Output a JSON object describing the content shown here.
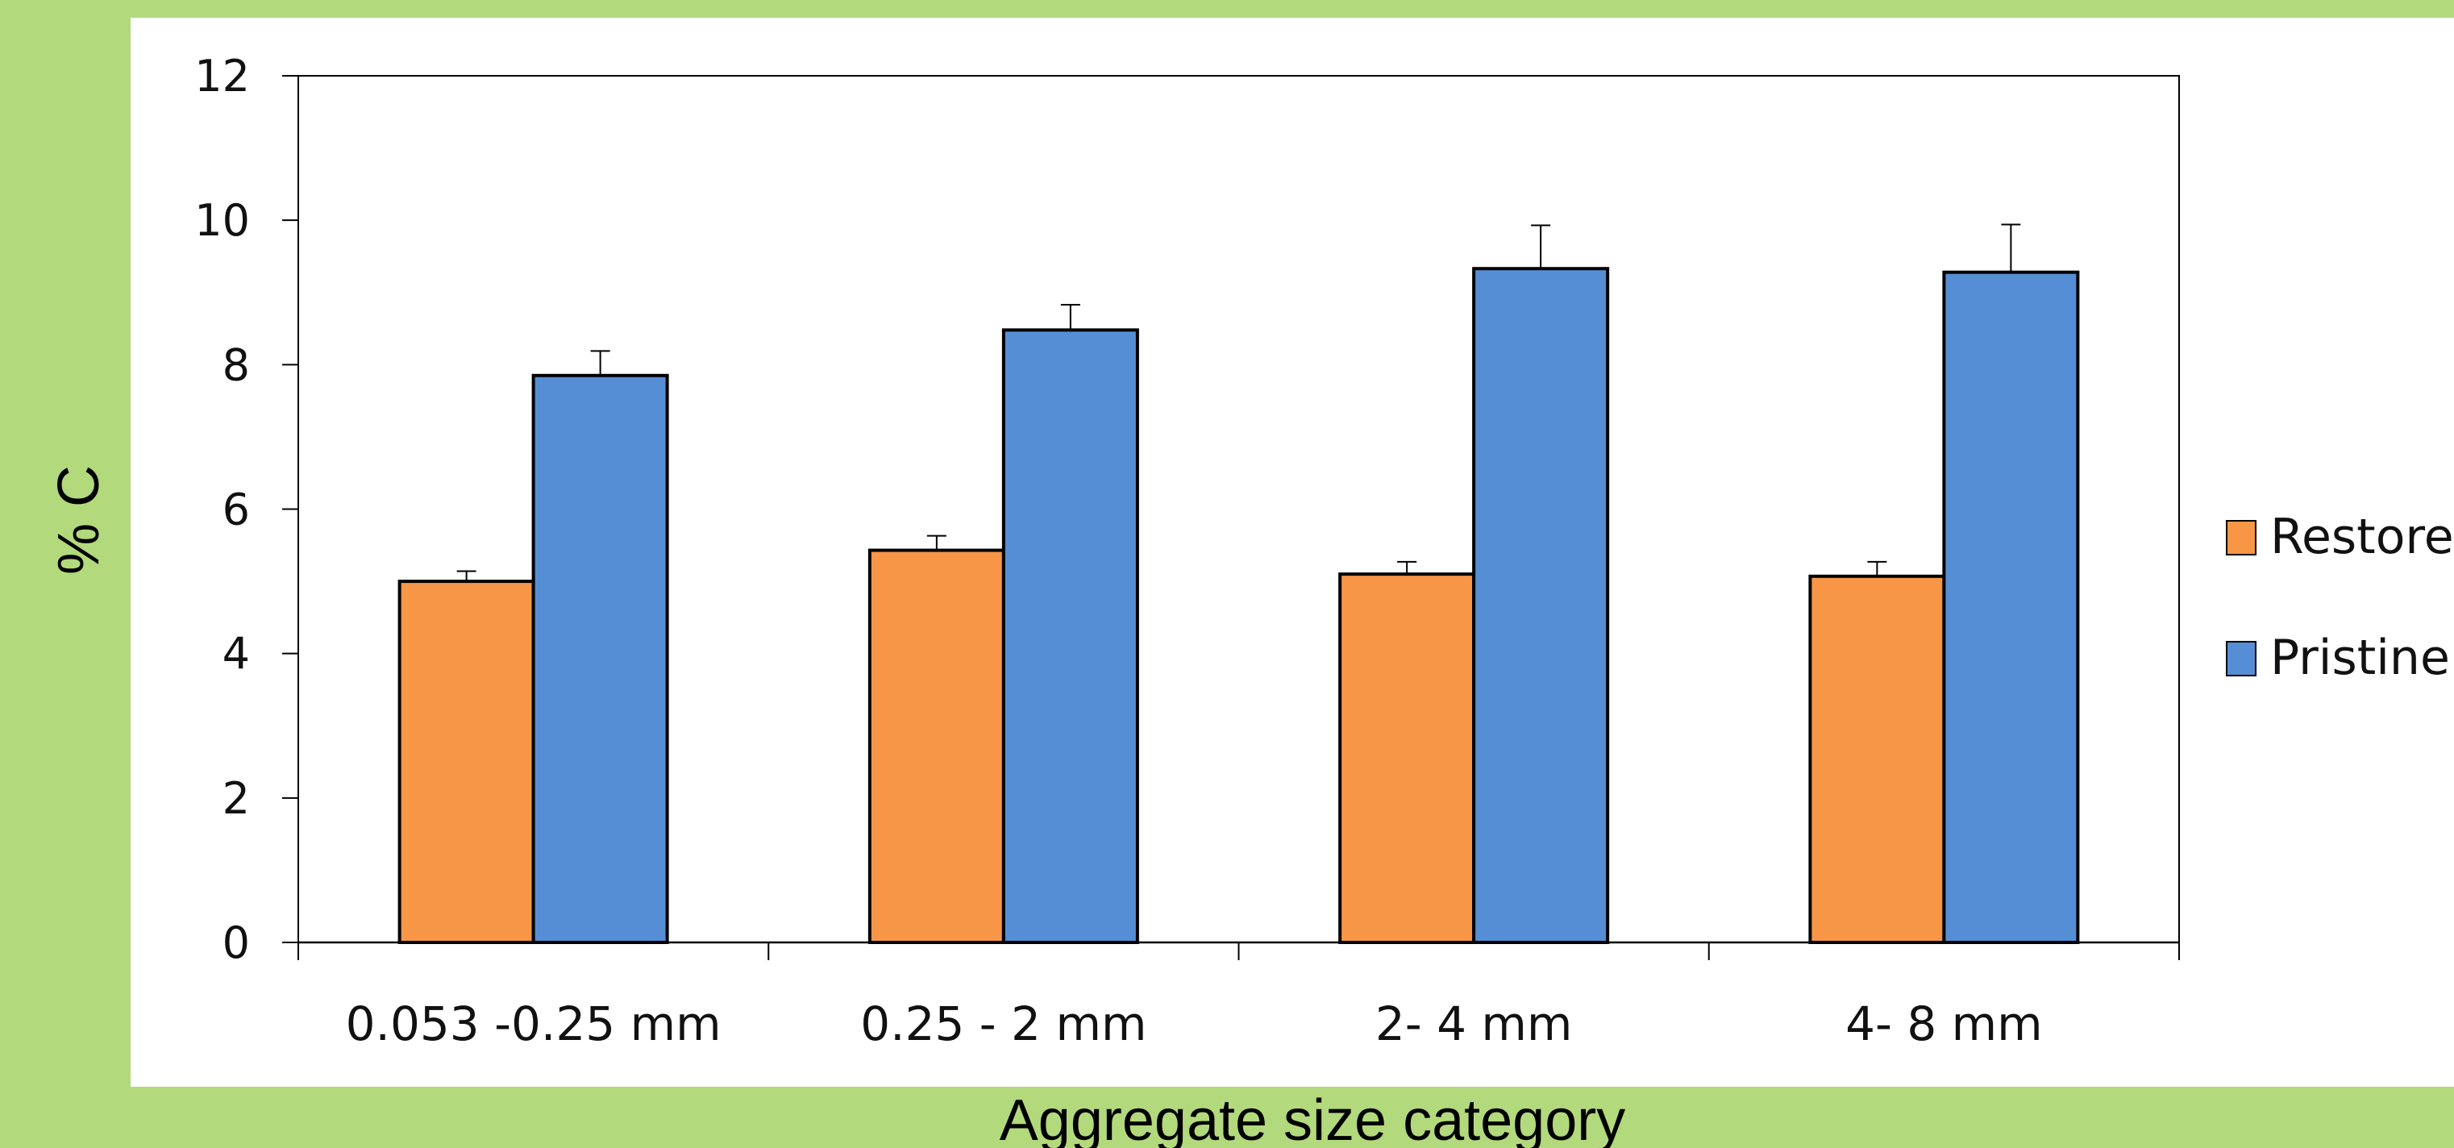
{
  "chart_data": {
    "type": "bar",
    "title": "",
    "xlabel": "Aggregate size category",
    "ylabel": "% C",
    "categories": [
      "0.053 -0.25 mm",
      "0.25 - 2 mm",
      "2- 4 mm",
      "4- 8 mm"
    ],
    "series": [
      {
        "name": "Restored",
        "color": "#f79646",
        "values": [
          5.0,
          5.43,
          5.1,
          5.07
        ],
        "errors": [
          0.14,
          0.2,
          0.17,
          0.2
        ]
      },
      {
        "name": "Pristine",
        "color": "#558ed5",
        "values": [
          7.85,
          8.48,
          9.33,
          9.28
        ],
        "errors": [
          0.34,
          0.35,
          0.6,
          0.66
        ]
      }
    ],
    "ylim": [
      0,
      12
    ],
    "yticks": [
      0,
      2,
      4,
      6,
      8,
      10,
      12
    ],
    "grid": false,
    "error_bars": true,
    "legend_position": "right"
  }
}
